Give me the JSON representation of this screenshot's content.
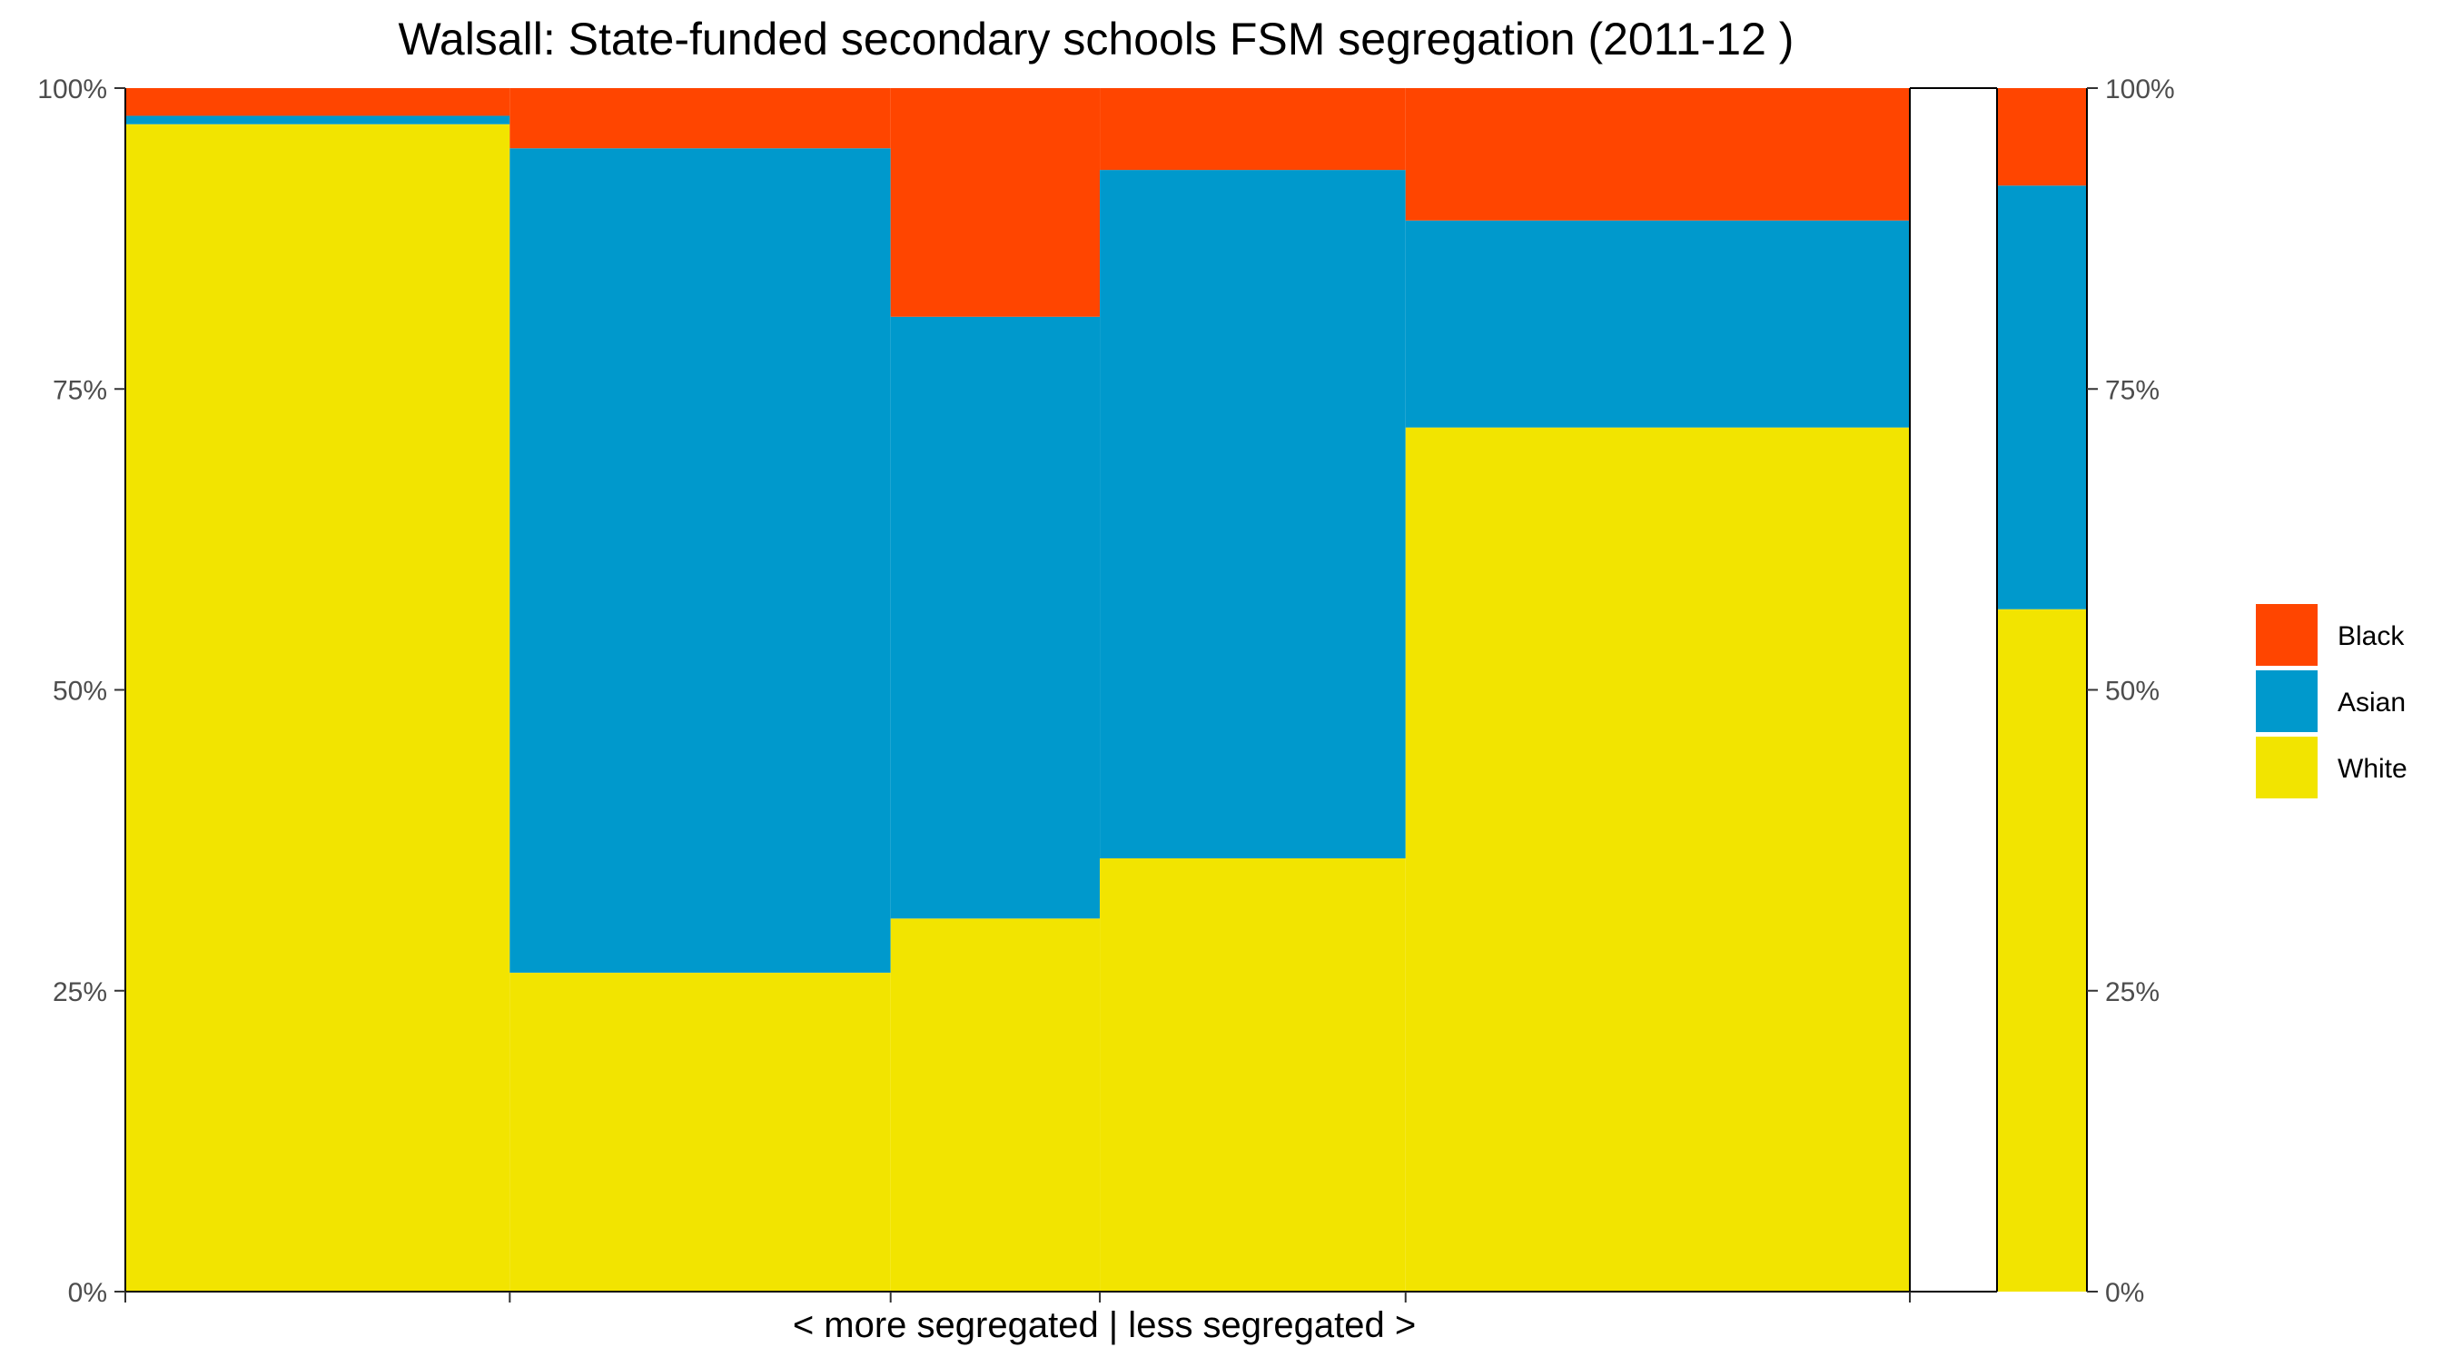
{
  "chart_data": {
    "type": "bar",
    "subtype": "stacked-percent-variable-width (mosaic)",
    "title": "Walsall: State-funded secondary schools FSM segregation (2011-12 )",
    "xlabel": "< more segregated | less segregated >",
    "ylabel": "",
    "ylim": [
      0,
      100
    ],
    "y_unit": "%",
    "y_ticks": [
      "0%",
      "25%",
      "50%",
      "75%",
      "100%"
    ],
    "secondary_y_axis": true,
    "grid": false,
    "legend_position": "right",
    "legend_order": [
      "Black",
      "Asian",
      "White"
    ],
    "colors": {
      "White": "#f2e400",
      "Asian": "#0099cc",
      "Black": "#ff4500"
    },
    "width_scale_note": "column widths proportional to relative share of pupils",
    "groups": [
      {
        "relative_width": 0.215,
        "values": {
          "White": 97.0,
          "Asian": 0.7,
          "Black": 2.3
        }
      },
      {
        "relative_width": 0.213,
        "values": {
          "White": 26.5,
          "Asian": 68.5,
          "Black": 5.0
        }
      },
      {
        "relative_width": 0.117,
        "values": {
          "White": 31.0,
          "Asian": 50.0,
          "Black": 19.0
        }
      },
      {
        "relative_width": 0.171,
        "values": {
          "White": 36.0,
          "Asian": 57.2,
          "Black": 6.8
        }
      },
      {
        "relative_width": 0.282,
        "values": {
          "White": 71.8,
          "Asian": 17.2,
          "Black": 11.0
        }
      }
    ],
    "overall": {
      "values": {
        "White": 56.7,
        "Asian": 35.2,
        "Black": 8.1
      }
    }
  }
}
